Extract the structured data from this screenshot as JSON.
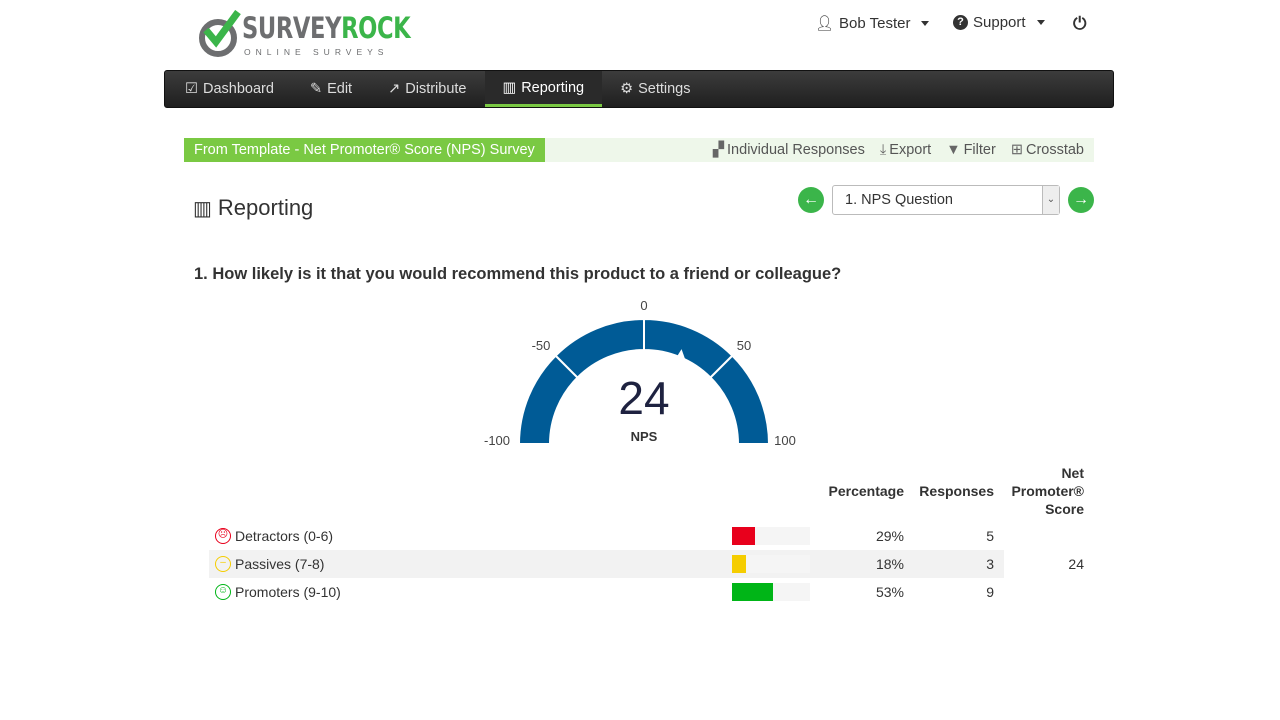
{
  "logo": {
    "word1": "SURVEY",
    "word2": "ROCK",
    "tagline": "ONLINE SURVEYS"
  },
  "topnav": {
    "user": "Bob Tester",
    "support": "Support"
  },
  "navbar": [
    {
      "label": "Dashboard",
      "icon": "check-square-icon"
    },
    {
      "label": "Edit",
      "icon": "edit-icon"
    },
    {
      "label": "Distribute",
      "icon": "share-icon"
    },
    {
      "label": "Reporting",
      "icon": "bar-chart-icon",
      "active": true
    },
    {
      "label": "Settings",
      "icon": "gear-icon"
    }
  ],
  "survey_title": "From Template - Net Promoter® Score (NPS) Survey",
  "actions": {
    "individual": "Individual Responses",
    "export": "Export",
    "filter": "Filter",
    "crosstab": "Crosstab"
  },
  "page_title": "Reporting",
  "question_select": "1. NPS Question",
  "question": "1. How likely is it that you would recommend this product to a friend or colleague?",
  "gauge": {
    "value": 24,
    "value_text": "24",
    "label": "NPS",
    "min": -100,
    "max": 100,
    "ticks": [
      "-100",
      "-50",
      "0",
      "50",
      "100"
    ],
    "color": "#005b96"
  },
  "table": {
    "headers": {
      "percentage": "Percentage",
      "responses": "Responses",
      "nps1": "Net",
      "nps2": "Promoter®",
      "nps3": "Score"
    },
    "rows": [
      {
        "label": "Detractors (0-6)",
        "pct": 29,
        "pct_text": "29%",
        "responses": "5",
        "color": "#e8001c",
        "face": "☹"
      },
      {
        "label": "Passives (7-8)",
        "pct": 18,
        "pct_text": "18%",
        "responses": "3",
        "color": "#f5cd00",
        "face": "–"
      },
      {
        "label": "Promoters (9-10)",
        "pct": 53,
        "pct_text": "53%",
        "responses": "9",
        "color": "#00b517",
        "face": "☺"
      }
    ],
    "nps": "24"
  }
}
